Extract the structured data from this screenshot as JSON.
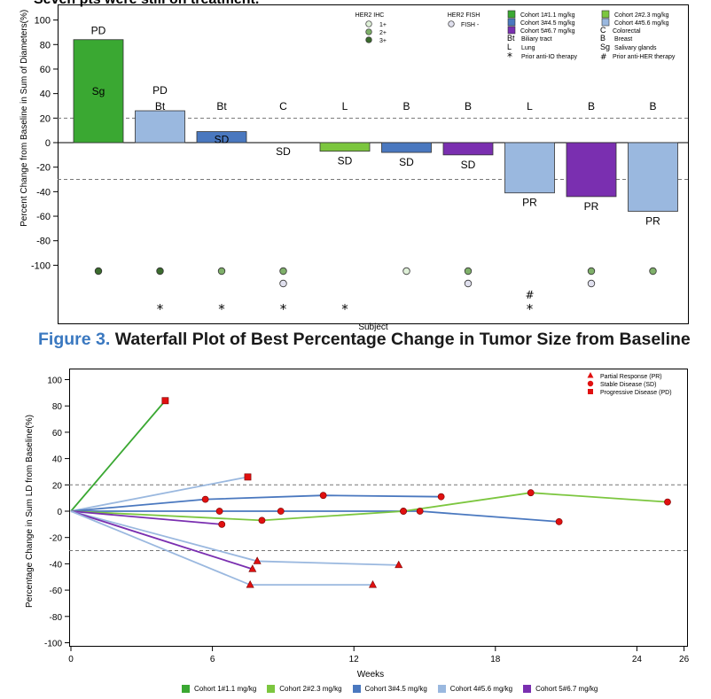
{
  "top_fragment": "Seven pts were still on treatment.",
  "caption": {
    "number": "Figure 3.",
    "text": "Waterfall Plot of Best Percentage Change in Tumor Size from Baseline"
  },
  "colors": {
    "c1": "#3aa832",
    "c2": "#7cc63f",
    "c3": "#4a78bf",
    "c4": "#9ab8df",
    "c5": "#7a2fb0",
    "ihc1": "#dff0d8",
    "ihc2": "#7fb06a",
    "ihc3": "#3b6b2e",
    "fish_neg": "#e0e0ee"
  },
  "chart_data": [
    {
      "type": "bar",
      "title": "",
      "xlabel": "Subject",
      "ylabel": "Percent Change from Baseline in Sum of Diameters(%)",
      "ylim": [
        -150,
        100
      ],
      "yticks": [
        "100",
        "80",
        "60",
        "40",
        "20",
        "0",
        "-20",
        "-40",
        "-60",
        "-80",
        "-100"
      ],
      "ytick_values": [
        100,
        80,
        60,
        40,
        20,
        0,
        -20,
        -40,
        -60,
        -80,
        -100
      ],
      "reference_lines": [
        20,
        -30
      ],
      "bars": [
        {
          "value": 84,
          "cohort": "c1",
          "response": "PD",
          "tumor": "Sg",
          "ihc": "3+",
          "fish": null,
          "prior_io": false,
          "prior_her": false
        },
        {
          "value": 26,
          "cohort": "c4",
          "response": "PD",
          "tumor": "Bt",
          "ihc": "3+",
          "fish": null,
          "prior_io": true,
          "prior_her": false
        },
        {
          "value": 9,
          "cohort": "c3",
          "response": "SD",
          "tumor": "Bt",
          "ihc": "2+",
          "fish": null,
          "prior_io": true,
          "prior_her": false
        },
        {
          "value": 0,
          "cohort": "c3",
          "response": "SD",
          "tumor": "C",
          "ihc": "2+",
          "fish": "-",
          "prior_io": true,
          "prior_her": false
        },
        {
          "value": -7,
          "cohort": "c2",
          "response": "SD",
          "tumor": "L",
          "ihc": null,
          "fish": null,
          "prior_io": true,
          "prior_her": false
        },
        {
          "value": -8,
          "cohort": "c3",
          "response": "SD",
          "tumor": "B",
          "ihc": "1+",
          "fish": null,
          "prior_io": false,
          "prior_her": false
        },
        {
          "value": -10,
          "cohort": "c5",
          "response": "SD",
          "tumor": "B",
          "ihc": "2+",
          "fish": "-",
          "prior_io": false,
          "prior_her": false
        },
        {
          "value": -41,
          "cohort": "c4",
          "response": "PR",
          "tumor": "L",
          "ihc": null,
          "fish": null,
          "prior_io": true,
          "prior_her": true
        },
        {
          "value": -44,
          "cohort": "c5",
          "response": "PR",
          "tumor": "B",
          "ihc": "2+",
          "fish": "-",
          "prior_io": false,
          "prior_her": false
        },
        {
          "value": -56,
          "cohort": "c4",
          "response": "PR",
          "tumor": "B",
          "ihc": "2+",
          "fish": null,
          "prior_io": false,
          "prior_her": false
        }
      ],
      "legend": {
        "ihc_title": "HER2 IHC",
        "ihc": [
          {
            "key": "ihc1",
            "label": "1+"
          },
          {
            "key": "ihc2",
            "label": "2+"
          },
          {
            "key": "ihc3",
            "label": "3+"
          }
        ],
        "fish_title": "HER2 FISH",
        "fish": [
          {
            "key": "fish_neg",
            "label": "FISH -"
          }
        ],
        "cohorts": [
          {
            "key": "c1",
            "label": "Cohort 1#1.1 mg/kg"
          },
          {
            "key": "c2",
            "label": "Cohort 2#2.3 mg/kg"
          },
          {
            "key": "c3",
            "label": "Cohort 3#4.5 mg/kg"
          },
          {
            "key": "c4",
            "label": "Cohort 4#5.6 mg/kg"
          },
          {
            "key": "c5",
            "label": "Cohort 5#6.7 mg/kg"
          }
        ],
        "tumor_types": [
          {
            "abbr": "Bt",
            "label": "Biliary tract"
          },
          {
            "abbr": "B",
            "label": "Breast"
          },
          {
            "abbr": "L",
            "label": "Lung"
          },
          {
            "abbr": "Sg",
            "label": "Salivary glands"
          }
        ],
        "tumor_type_c": {
          "abbr": "C",
          "label": "Colorectal"
        },
        "prior": [
          {
            "symbol": "*",
            "label": "Prior anti-IO therapy"
          },
          {
            "symbol": "#",
            "label": "Prior anti-HER therapy"
          }
        ]
      }
    },
    {
      "type": "line",
      "title": "",
      "xlabel": "Weeks",
      "ylabel": "Percentage Change in Sum LD from Baseline(%)",
      "xlim": [
        0,
        26
      ],
      "ylim": [
        -100,
        100
      ],
      "xticks": [
        0,
        6,
        12,
        18,
        24,
        26
      ],
      "xtick_labels": [
        "0",
        "6",
        "12",
        "18",
        "24",
        "26"
      ],
      "yticks": [
        100,
        80,
        60,
        40,
        20,
        0,
        -20,
        -40,
        -60,
        -80,
        -100
      ],
      "ytick_labels": [
        "100",
        "80",
        "60",
        "40",
        "20",
        "0",
        "-20",
        "-40",
        "-60",
        "-80",
        "-100"
      ],
      "reference_lines": [
        20,
        -30
      ],
      "response_legend": [
        {
          "marker": "triangle",
          "label": "Partial Response (PR)"
        },
        {
          "marker": "circle",
          "label": "Stable Disease (SD)"
        },
        {
          "marker": "square",
          "label": "Progressive Disease (PD)"
        }
      ],
      "series": [
        {
          "cohort": "c1",
          "points": [
            [
              0,
              0,
              "none"
            ],
            [
              4.0,
              84,
              "PD"
            ]
          ]
        },
        {
          "cohort": "c4",
          "points": [
            [
              0,
              0,
              "none"
            ],
            [
              7.5,
              26,
              "PD"
            ]
          ]
        },
        {
          "cohort": "c3",
          "points": [
            [
              0,
              0,
              "none"
            ],
            [
              5.7,
              9,
              "SD"
            ],
            [
              10.7,
              12,
              "SD"
            ],
            [
              15.7,
              11,
              "SD"
            ]
          ]
        },
        {
          "cohort": "c3",
          "points": [
            [
              0,
              0,
              "none"
            ],
            [
              6.3,
              0,
              "SD"
            ],
            [
              8.9,
              0,
              "SD"
            ],
            [
              14.1,
              0,
              "SD"
            ],
            [
              14.8,
              0,
              "SD"
            ],
            [
              20.7,
              -8,
              "SD"
            ]
          ]
        },
        {
          "cohort": "c2",
          "points": [
            [
              0,
              0,
              "none"
            ],
            [
              8.1,
              -7,
              "SD"
            ],
            [
              14.1,
              0,
              "SD"
            ],
            [
              19.5,
              14,
              "SD"
            ],
            [
              25.3,
              7,
              "SD"
            ]
          ]
        },
        {
          "cohort": "c5",
          "points": [
            [
              0,
              0,
              "none"
            ],
            [
              6.4,
              -10,
              "SD"
            ]
          ]
        },
        {
          "cohort": "c4",
          "points": [
            [
              0,
              0,
              "none"
            ],
            [
              7.9,
              -38,
              "PR"
            ],
            [
              13.9,
              -41,
              "PR"
            ]
          ]
        },
        {
          "cohort": "c5",
          "points": [
            [
              0,
              0,
              "none"
            ],
            [
              7.7,
              -44,
              "PR"
            ]
          ]
        },
        {
          "cohort": "c4",
          "points": [
            [
              0,
              0,
              "none"
            ],
            [
              7.6,
              -56,
              "PR"
            ],
            [
              12.8,
              -56,
              "PR"
            ]
          ]
        }
      ]
    }
  ]
}
